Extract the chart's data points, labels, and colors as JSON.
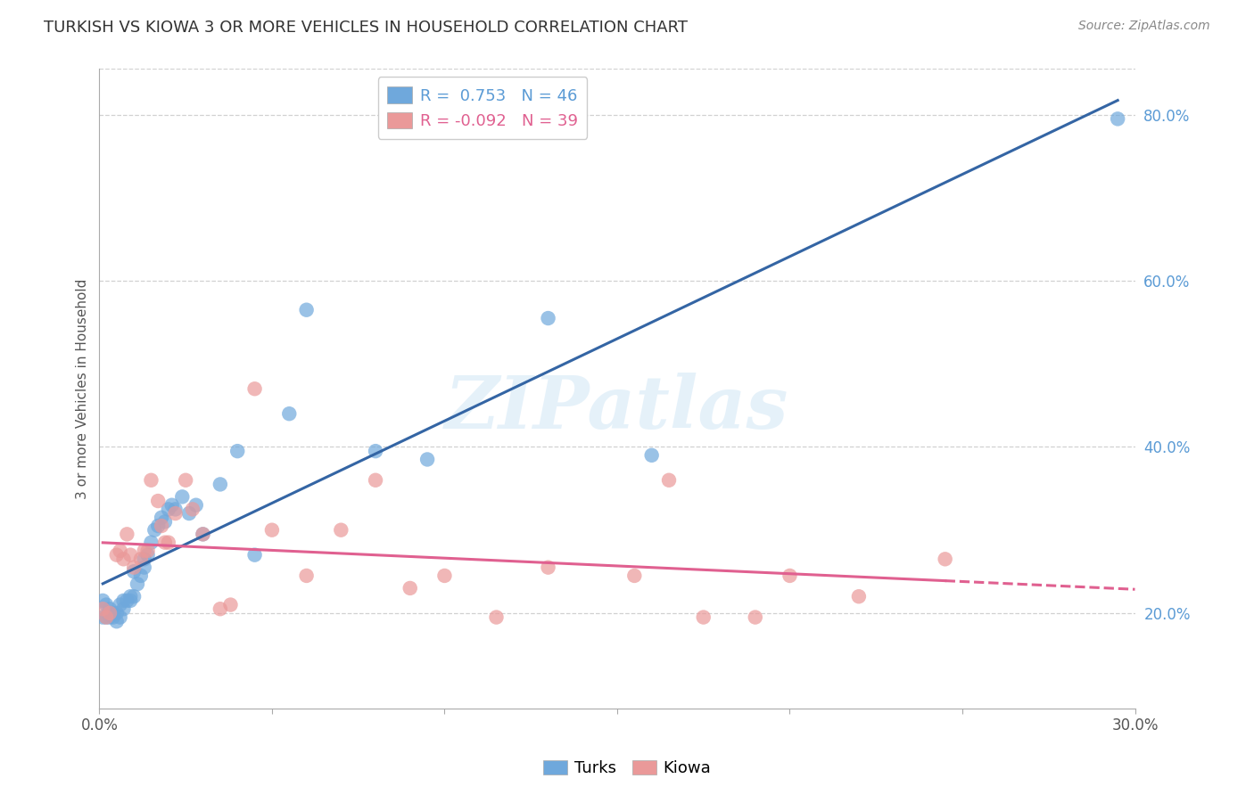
{
  "title": "TURKISH VS KIOWA 3 OR MORE VEHICLES IN HOUSEHOLD CORRELATION CHART",
  "source": "Source: ZipAtlas.com",
  "ylabel": "3 or more Vehicles in Household",
  "xlim": [
    0.0,
    0.3
  ],
  "ylim": [
    0.085,
    0.855
  ],
  "xticks": [
    0.0,
    0.05,
    0.1,
    0.15,
    0.2,
    0.25,
    0.3
  ],
  "xticklabels": [
    "0.0%",
    "",
    "",
    "",
    "",
    "",
    "30.0%"
  ],
  "ytick_right_values": [
    0.2,
    0.4,
    0.6,
    0.8
  ],
  "watermark": "ZIPatlas",
  "legend_blue_R": "0.753",
  "legend_blue_N": "46",
  "legend_pink_R": "-0.092",
  "legend_pink_N": "39",
  "turks_color": "#6fa8dc",
  "kiowa_color": "#ea9999",
  "turks_line_color": "#3465a4",
  "kiowa_line_color": "#e06090",
  "background_color": "#ffffff",
  "grid_color": "#cccccc",
  "turks_x": [
    0.001,
    0.001,
    0.002,
    0.002,
    0.003,
    0.003,
    0.004,
    0.004,
    0.005,
    0.005,
    0.006,
    0.006,
    0.007,
    0.007,
    0.008,
    0.009,
    0.009,
    0.01,
    0.01,
    0.011,
    0.012,
    0.013,
    0.013,
    0.014,
    0.015,
    0.016,
    0.017,
    0.018,
    0.019,
    0.02,
    0.021,
    0.022,
    0.024,
    0.026,
    0.028,
    0.03,
    0.035,
    0.04,
    0.045,
    0.055,
    0.06,
    0.08,
    0.095,
    0.13,
    0.16,
    0.295
  ],
  "turks_y": [
    0.215,
    0.195,
    0.21,
    0.195,
    0.205,
    0.195,
    0.2,
    0.195,
    0.2,
    0.19,
    0.21,
    0.195,
    0.215,
    0.205,
    0.215,
    0.22,
    0.215,
    0.22,
    0.25,
    0.235,
    0.245,
    0.255,
    0.265,
    0.27,
    0.285,
    0.3,
    0.305,
    0.315,
    0.31,
    0.325,
    0.33,
    0.325,
    0.34,
    0.32,
    0.33,
    0.295,
    0.355,
    0.395,
    0.27,
    0.44,
    0.565,
    0.395,
    0.385,
    0.555,
    0.39,
    0.795
  ],
  "kiowa_x": [
    0.001,
    0.002,
    0.003,
    0.005,
    0.006,
    0.007,
    0.008,
    0.009,
    0.01,
    0.012,
    0.013,
    0.014,
    0.015,
    0.017,
    0.018,
    0.019,
    0.02,
    0.022,
    0.025,
    0.027,
    0.03,
    0.035,
    0.038,
    0.045,
    0.05,
    0.06,
    0.07,
    0.08,
    0.09,
    0.1,
    0.115,
    0.13,
    0.155,
    0.165,
    0.175,
    0.19,
    0.2,
    0.22,
    0.245
  ],
  "kiowa_y": [
    0.205,
    0.195,
    0.2,
    0.27,
    0.275,
    0.265,
    0.295,
    0.27,
    0.255,
    0.265,
    0.275,
    0.275,
    0.36,
    0.335,
    0.305,
    0.285,
    0.285,
    0.32,
    0.36,
    0.325,
    0.295,
    0.205,
    0.21,
    0.47,
    0.3,
    0.245,
    0.3,
    0.36,
    0.23,
    0.245,
    0.195,
    0.255,
    0.245,
    0.36,
    0.195,
    0.195,
    0.245,
    0.22,
    0.265
  ]
}
